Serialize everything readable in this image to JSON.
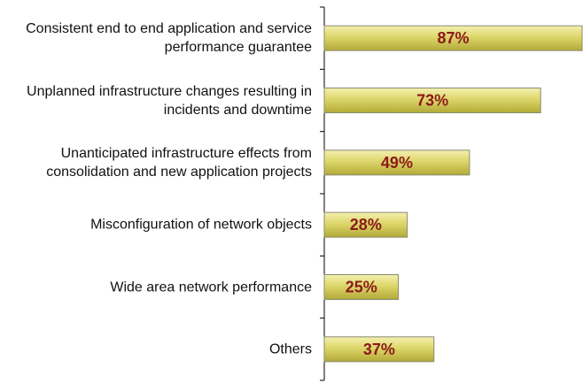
{
  "chart_data": {
    "type": "bar",
    "orientation": "horizontal",
    "categories": [
      "Consistent end to end application and service performance guarantee",
      "Unplanned infrastructure changes resulting in incidents and downtime",
      "Unanticipated infrastructure effects from consolidation and new application projects",
      "Misconfiguration of network objects",
      "Wide area network performance",
      "Others"
    ],
    "values": [
      87,
      73,
      49,
      28,
      25,
      37
    ],
    "value_labels": [
      "87%",
      "73%",
      "49%",
      "28%",
      "25%",
      "37%"
    ],
    "color": "#d8d25c"
  }
}
